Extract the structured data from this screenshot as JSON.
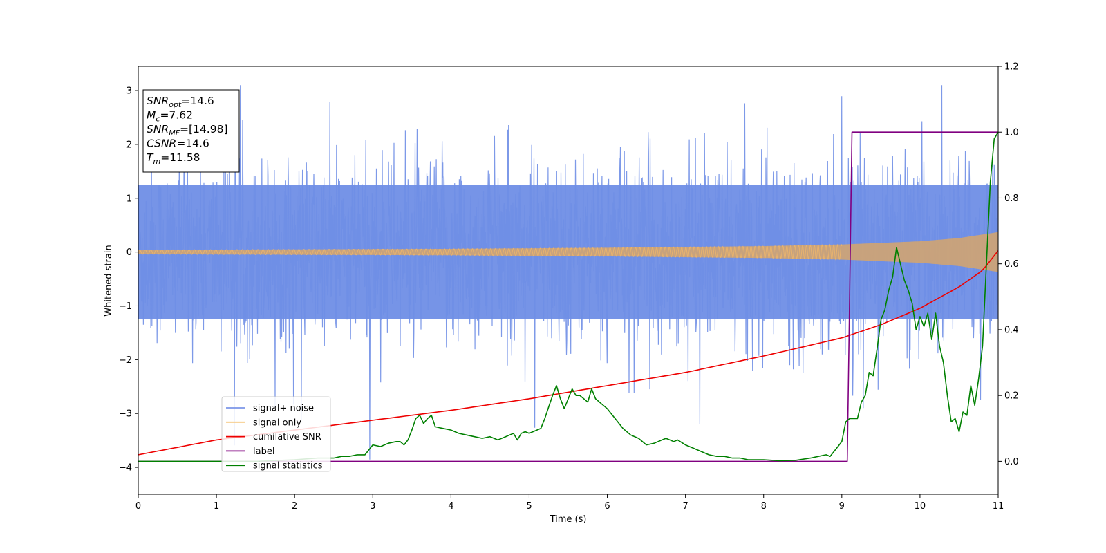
{
  "chart_data": {
    "type": "line",
    "xlabel": "Time (s)",
    "ylabel": "Whitened strain",
    "xlim": [
      0,
      11
    ],
    "ylim": [
      -4.5,
      3.45
    ],
    "y2lim": [
      -0.1,
      1.2
    ],
    "x_ticks": [
      "0",
      "1",
      "2",
      "3",
      "4",
      "5",
      "6",
      "7",
      "8",
      "9",
      "10",
      "11"
    ],
    "y_ticks": [
      "3",
      "2",
      "1",
      "0",
      "−1",
      "−2",
      "−3",
      "−4"
    ],
    "y2_ticks": [
      "1.2",
      "1.0",
      "0.8",
      "0.6",
      "0.4",
      "0.2",
      "0.0"
    ],
    "info_box": [
      {
        "main": "SNR",
        "sub": "opt",
        "value": "=14.6"
      },
      {
        "main": "M",
        "sub": "c",
        "value": "=7.62"
      },
      {
        "main": "SNR",
        "sub": "MF",
        "value": "=[14.98]"
      },
      {
        "main": "CSNR",
        "sub": "",
        "value": "=14.6"
      },
      {
        "main": "T",
        "sub": "m",
        "value": "=11.58"
      }
    ],
    "legend": {
      "placement": "lower-left",
      "entries": [
        {
          "label": "signal+ noise",
          "color": "#7b96e8"
        },
        {
          "label": "signal only",
          "color": "#f5c77e"
        },
        {
          "label": "cumilative SNR",
          "color": "#ee0000"
        },
        {
          "label": "label",
          "color": "#800080"
        },
        {
          "label": "signal statistics",
          "color": "#008000"
        }
      ]
    },
    "series": [
      {
        "name": "signal+ noise",
        "axis": "left",
        "color": "#6f8ee6",
        "description_range": [
          -4.15,
          3.1
        ],
        "typical_band": [
          -1.25,
          1.25
        ]
      },
      {
        "name": "signal only",
        "axis": "left",
        "color": "#d7a66a",
        "envelope_x": [
          0,
          2,
          4,
          6,
          8,
          9,
          10,
          10.5,
          11
        ],
        "envelope_y": [
          0.04,
          0.05,
          0.06,
          0.08,
          0.11,
          0.14,
          0.2,
          0.26,
          0.37
        ]
      },
      {
        "name": "cumilative SNR",
        "axis": "right",
        "color": "#ee0000",
        "x": [
          0,
          1,
          2,
          3,
          4,
          5,
          6,
          7,
          8,
          9,
          9.5,
          10,
          10.5,
          10.8,
          11
        ],
        "y": [
          0.02,
          0.065,
          0.095,
          0.125,
          0.155,
          0.19,
          0.23,
          0.27,
          0.32,
          0.375,
          0.415,
          0.465,
          0.53,
          0.58,
          0.64
        ]
      },
      {
        "name": "label",
        "axis": "right",
        "color": "#800080",
        "x": [
          0,
          9.07,
          9.13,
          11
        ],
        "y": [
          0.0,
          0.0,
          1.0,
          1.0
        ]
      },
      {
        "name": "signal statistics",
        "axis": "right",
        "color": "#008000",
        "x": [
          0,
          0.5,
          1,
          1.5,
          2,
          2.3,
          2.5,
          2.6,
          2.7,
          2.8,
          2.9,
          3.0,
          3.1,
          3.2,
          3.3,
          3.35,
          3.4,
          3.45,
          3.5,
          3.55,
          3.6,
          3.65,
          3.7,
          3.75,
          3.8,
          3.9,
          4.0,
          4.1,
          4.2,
          4.3,
          4.4,
          4.5,
          4.6,
          4.7,
          4.75,
          4.8,
          4.85,
          4.9,
          4.95,
          5.0,
          5.05,
          5.1,
          5.15,
          5.2,
          5.25,
          5.3,
          5.35,
          5.4,
          5.45,
          5.5,
          5.55,
          5.6,
          5.65,
          5.7,
          5.75,
          5.8,
          5.85,
          5.9,
          6.0,
          6.1,
          6.2,
          6.3,
          6.4,
          6.5,
          6.6,
          6.7,
          6.75,
          6.8,
          6.85,
          6.9,
          7.0,
          7.1,
          7.2,
          7.3,
          7.4,
          7.5,
          7.6,
          7.7,
          7.8,
          7.9,
          8.0,
          8.2,
          8.4,
          8.6,
          8.7,
          8.8,
          8.85,
          8.9,
          8.95,
          9.0,
          9.05,
          9.1,
          9.15,
          9.2,
          9.25,
          9.3,
          9.35,
          9.4,
          9.45,
          9.5,
          9.55,
          9.6,
          9.65,
          9.7,
          9.75,
          9.8,
          9.85,
          9.9,
          9.95,
          10.0,
          10.05,
          10.1,
          10.15,
          10.2,
          10.25,
          10.3,
          10.35,
          10.4,
          10.45,
          10.5,
          10.55,
          10.6,
          10.65,
          10.7,
          10.75,
          10.8,
          10.85,
          10.9,
          10.95,
          11.0
        ],
        "y": [
          0.0,
          0.0,
          0.0,
          0.0,
          0.005,
          0.01,
          0.01,
          0.015,
          0.015,
          0.02,
          0.02,
          0.05,
          0.045,
          0.055,
          0.06,
          0.06,
          0.05,
          0.065,
          0.095,
          0.13,
          0.14,
          0.115,
          0.13,
          0.14,
          0.105,
          0.1,
          0.095,
          0.085,
          0.08,
          0.075,
          0.07,
          0.075,
          0.065,
          0.075,
          0.08,
          0.085,
          0.065,
          0.085,
          0.09,
          0.085,
          0.09,
          0.095,
          0.1,
          0.13,
          0.165,
          0.2,
          0.23,
          0.19,
          0.16,
          0.19,
          0.22,
          0.2,
          0.2,
          0.19,
          0.18,
          0.22,
          0.19,
          0.18,
          0.16,
          0.13,
          0.1,
          0.08,
          0.07,
          0.05,
          0.055,
          0.065,
          0.07,
          0.065,
          0.06,
          0.065,
          0.05,
          0.04,
          0.03,
          0.02,
          0.015,
          0.015,
          0.01,
          0.01,
          0.005,
          0.005,
          0.005,
          0.002,
          0.003,
          0.01,
          0.015,
          0.02,
          0.015,
          0.03,
          0.045,
          0.06,
          0.12,
          0.13,
          0.13,
          0.13,
          0.18,
          0.2,
          0.27,
          0.26,
          0.34,
          0.43,
          0.46,
          0.52,
          0.56,
          0.65,
          0.6,
          0.55,
          0.52,
          0.48,
          0.4,
          0.44,
          0.41,
          0.45,
          0.37,
          0.45,
          0.35,
          0.3,
          0.2,
          0.12,
          0.13,
          0.09,
          0.15,
          0.14,
          0.23,
          0.17,
          0.25,
          0.35,
          0.6,
          0.85,
          0.98,
          1.0
        ]
      }
    ]
  }
}
